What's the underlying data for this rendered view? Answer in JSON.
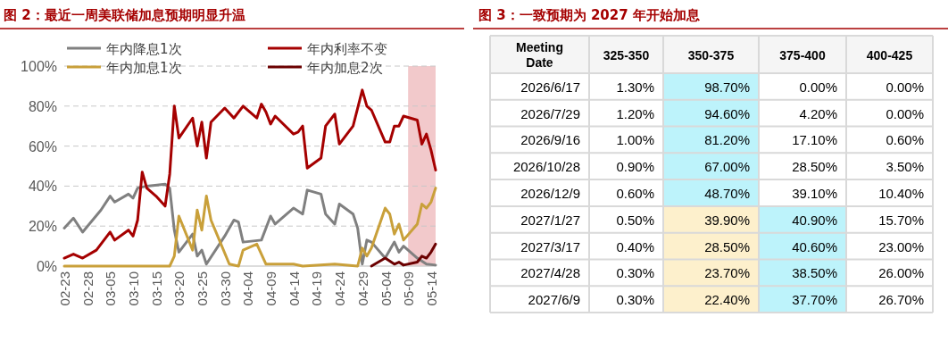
{
  "chart_data": [
    {
      "type": "line",
      "title": "图 2：最近一周美联储加息预期明显升温",
      "legend": "top",
      "grid": "y",
      "line_style": "solid",
      "xlim": [
        "--02-23",
        "--05-15"
      ],
      "xticks": [
        {
          "value": "--02-23",
          "label": "02-23"
        },
        {
          "value": "--02-28",
          "label": "02-28"
        },
        {
          "value": "--03-05",
          "label": "03-05"
        },
        {
          "value": "--03-10",
          "label": "03-10"
        },
        {
          "value": "--03-15",
          "label": "03-15"
        },
        {
          "value": "--03-20",
          "label": "03-20"
        },
        {
          "value": "--03-25",
          "label": "03-25"
        },
        {
          "value": "--03-30",
          "label": "03-30"
        },
        {
          "value": "--04-04",
          "label": "04-04"
        },
        {
          "value": "--04-09",
          "label": "04-09"
        },
        {
          "value": "--04-14",
          "label": "04-14"
        },
        {
          "value": "--04-19",
          "label": "04-19"
        },
        {
          "value": "--04-24",
          "label": "04-24"
        },
        {
          "value": "--04-29",
          "label": "04-29"
        },
        {
          "value": "--05-04",
          "label": "05-04"
        },
        {
          "value": "--05-09",
          "label": "05-09"
        },
        {
          "value": "--05-14",
          "label": "05-14"
        }
      ],
      "ylim": [
        0,
        100
      ],
      "yticks": [
        {
          "value": 0,
          "label": "0%"
        },
        {
          "value": 20,
          "label": "20%"
        },
        {
          "value": 40,
          "label": "40%"
        },
        {
          "value": 60,
          "label": "60%"
        },
        {
          "value": 80,
          "label": "80%"
        },
        {
          "value": 100,
          "label": "100%"
        }
      ],
      "bands": [
        {
          "axis": "x",
          "from": "--05-09",
          "to": "--05-15",
          "color": "#f2c9cb"
        }
      ],
      "series": [
        {
          "name": "年内降息1次",
          "color": "#808080",
          "x": [
            "--02-23",
            "--02-25",
            "--02-27",
            "--03-03",
            "--03-05",
            "--03-06",
            "--03-09",
            "--03-10",
            "--03-11",
            "--03-13",
            "--03-17",
            "--03-18",
            "--03-19",
            "--03-20",
            "--03-23",
            "--03-24",
            "--03-25",
            "--03-26",
            "--03-30",
            "--04-01",
            "--04-02",
            "--04-03",
            "--04-07",
            "--04-09",
            "--04-10",
            "--04-14",
            "--04-16",
            "--04-17",
            "--04-20",
            "--04-21",
            "--04-23",
            "--04-24",
            "--04-27",
            "--04-28",
            "--04-29",
            "--04-30",
            "--05-01",
            "--05-04",
            "--05-06",
            "--05-07",
            "--05-08",
            "--05-11",
            "--05-13",
            "--05-15"
          ],
          "values": [
            19,
            24,
            17,
            28,
            35,
            32,
            36,
            34,
            39,
            40,
            41,
            39,
            18,
            7,
            16,
            5,
            8,
            1,
            15,
            23,
            22,
            12,
            13,
            25,
            21,
            29,
            26,
            38,
            36,
            26,
            21,
            31,
            26,
            19,
            1,
            13,
            12,
            4,
            12,
            7,
            10,
            4,
            1,
            0.5
          ]
        },
        {
          "name": "年内利率不变",
          "color": "#a50000",
          "x": [
            "--02-23",
            "--02-25",
            "--02-27",
            "--03-02",
            "--03-03",
            "--03-05",
            "--03-06",
            "--03-09",
            "--03-10",
            "--03-11",
            "--03-12",
            "--03-13",
            "--03-15",
            "--03-17",
            "--03-18",
            "--03-19",
            "--03-20",
            "--03-23",
            "--03-24",
            "--03-25",
            "--03-26",
            "--03-27",
            "--03-30",
            "--04-01",
            "--04-03",
            "--04-06",
            "--04-07",
            "--04-08",
            "--04-09",
            "--04-10",
            "--04-14",
            "--04-15",
            "--04-16",
            "--04-17",
            "--04-20",
            "--04-21",
            "--04-23",
            "--04-24",
            "--04-27",
            "--04-29",
            "--04-30",
            "--05-01",
            "--05-04",
            "--05-05",
            "--05-06",
            "--05-07",
            "--05-08",
            "--05-11",
            "--05-12",
            "--05-13",
            "--05-14",
            "--05-15"
          ],
          "values": [
            4,
            6,
            4,
            8,
            11,
            17,
            13,
            18,
            15,
            23,
            47,
            39,
            35,
            30,
            46,
            80,
            64,
            74,
            60,
            72,
            54,
            72,
            79,
            74,
            80,
            74,
            81,
            77,
            71,
            75,
            66,
            67,
            70,
            49,
            54,
            70,
            76,
            61,
            70,
            88,
            80,
            78,
            62,
            62,
            70,
            70,
            75,
            73,
            61,
            66,
            58,
            48
          ]
        },
        {
          "name": "年内加息1次",
          "color": "#c9a03a",
          "x": [
            "--02-23",
            "--03-18",
            "--03-19",
            "--03-20",
            "--03-23",
            "--03-24",
            "--03-25",
            "--03-26",
            "--03-27",
            "--03-31",
            "--04-02",
            "--04-03",
            "--04-06",
            "--04-08",
            "--04-14",
            "--04-16",
            "--04-23",
            "--04-28",
            "--04-29",
            "--04-30",
            "--05-01",
            "--05-04",
            "--05-05",
            "--05-06",
            "--05-07",
            "--05-08",
            "--05-11",
            "--05-12",
            "--05-13",
            "--05-14",
            "--05-15"
          ],
          "values": [
            0,
            0,
            5,
            25,
            8,
            28,
            18,
            35,
            23,
            1,
            0,
            8,
            11,
            1,
            1,
            0,
            1,
            0,
            9,
            5,
            9,
            29,
            26,
            16,
            21,
            13,
            21,
            31,
            29,
            32,
            39
          ]
        },
        {
          "name": "年内加息2次",
          "color": "#6b0000",
          "x": [
            "--05-01",
            "--05-04",
            "--05-06",
            "--05-07",
            "--05-08",
            "--05-11",
            "--05-12",
            "--05-13",
            "--05-14",
            "--05-15"
          ],
          "values": [
            0,
            4,
            1,
            2,
            0.5,
            2,
            5,
            4,
            7,
            11
          ]
        }
      ]
    },
    {
      "type": "heatmap",
      "title": "图 3：一致预期为 2027 年开始加息",
      "ylabel": "Meeting Date",
      "categories": [
        "325-350",
        "350-375",
        "375-400",
        "400-425"
      ],
      "y_categories": [
        "2026/6/17",
        "2026/7/29",
        "2026/9/16",
        "2026/10/28",
        "2026/12/9",
        "2027/1/27",
        "2027/3/17",
        "2027/4/28",
        "2027/6/9"
      ],
      "cells": [
        [
          1.3,
          98.7,
          0,
          0
        ],
        [
          1.2,
          94.6,
          4.2,
          0
        ],
        [
          1,
          81.2,
          17.1,
          0.6
        ],
        [
          0.9,
          67,
          28.5,
          3.5
        ],
        [
          0.6,
          48.7,
          39.1,
          10.4
        ],
        [
          0.5,
          39.9,
          40.9,
          15.7
        ],
        [
          0.4,
          28.5,
          40.6,
          23
        ],
        [
          0.3,
          23.7,
          38.5,
          26
        ],
        [
          0.3,
          22.4,
          37.7,
          26.7
        ]
      ],
      "cell_labels": [
        [
          "1.30%",
          "98.70%",
          "0.00%",
          "0.00%"
        ],
        [
          "1.20%",
          "94.60%",
          "4.20%",
          "0.00%"
        ],
        [
          "1.00%",
          "81.20%",
          "17.10%",
          "0.60%"
        ],
        [
          "0.90%",
          "67.00%",
          "28.50%",
          "3.50%"
        ],
        [
          "0.60%",
          "48.70%",
          "39.10%",
          "10.40%"
        ],
        [
          "0.50%",
          "39.90%",
          "40.90%",
          "15.70%"
        ],
        [
          "0.40%",
          "28.50%",
          "40.60%",
          "23.00%"
        ],
        [
          "0.30%",
          "23.70%",
          "38.50%",
          "26.00%"
        ],
        [
          "0.30%",
          "22.40%",
          "37.70%",
          "26.70%"
        ]
      ],
      "colors": [
        [
          "#ffffff",
          "#bdf3fb",
          "#ffffff",
          "#ffffff"
        ],
        [
          "#ffffff",
          "#bdf3fb",
          "#ffffff",
          "#ffffff"
        ],
        [
          "#ffffff",
          "#bdf3fb",
          "#ffffff",
          "#ffffff"
        ],
        [
          "#ffffff",
          "#bdf3fb",
          "#ffffff",
          "#ffffff"
        ],
        [
          "#ffffff",
          "#bdf3fb",
          "#ffffff",
          "#ffffff"
        ],
        [
          "#ffffff",
          "#fdf0cc",
          "#bdf3fb",
          "#ffffff"
        ],
        [
          "#ffffff",
          "#fdf0cc",
          "#bdf3fb",
          "#ffffff"
        ],
        [
          "#ffffff",
          "#fdf0cc",
          "#bdf3fb",
          "#ffffff"
        ],
        [
          "#ffffff",
          "#fdf0cc",
          "#bdf3fb",
          "#ffffff"
        ]
      ]
    }
  ]
}
